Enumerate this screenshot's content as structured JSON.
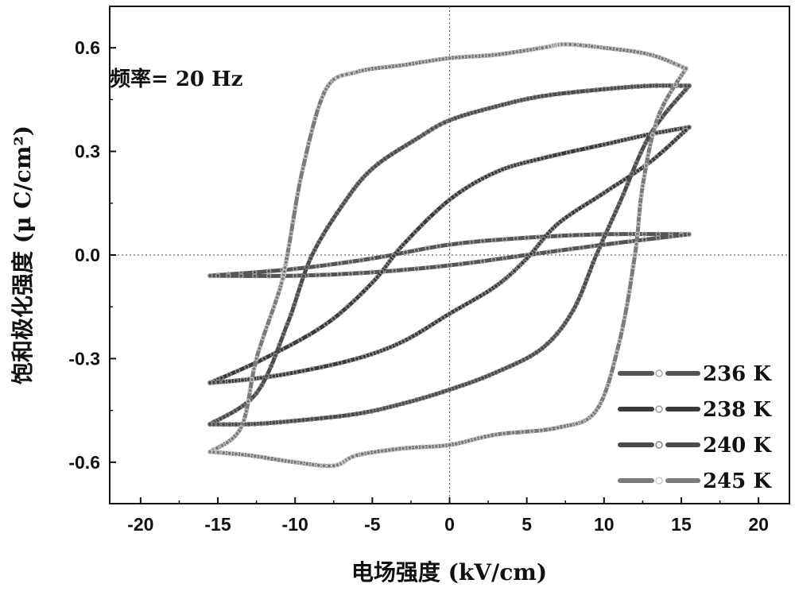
{
  "chart_data": {
    "type": "line",
    "xlabel": "电场强度 (kV/cm)",
    "ylabel": "饱和极化强度 (μ C/cm²)",
    "annotation": "频率= 20 Hz",
    "xlim": [
      -22,
      22
    ],
    "ylim": [
      -0.72,
      0.72
    ],
    "xticks": [
      -20,
      -15,
      -10,
      -5,
      0,
      5,
      10,
      15,
      20
    ],
    "xtick_labels": [
      "-20",
      "-15",
      "-10",
      "-5",
      "0",
      "5",
      "10",
      "15",
      "20"
    ],
    "yticks": [
      -0.6,
      -0.3,
      0.0,
      0.3,
      0.6
    ],
    "ytick_labels": [
      "-0.6",
      "-0.3",
      "0.0",
      "0.3",
      "0.6"
    ],
    "zero_lines": true,
    "legend_position": "bottom-right",
    "series": [
      {
        "name": "236 K",
        "color": "#555555",
        "marker_color": "#aaaaaa",
        "upper": [
          [
            -15.5,
            -0.06
          ],
          [
            -10,
            -0.04
          ],
          [
            -5,
            -0.01
          ],
          [
            0,
            0.03
          ],
          [
            5,
            0.05
          ],
          [
            10,
            0.06
          ],
          [
            15.5,
            0.06
          ]
        ],
        "lower": [
          [
            15.5,
            0.06
          ],
          [
            10,
            0.03
          ],
          [
            5,
            0.0
          ],
          [
            0,
            -0.03
          ],
          [
            -5,
            -0.05
          ],
          [
            -10,
            -0.06
          ],
          [
            -15.5,
            -0.06
          ]
        ]
      },
      {
        "name": "238 K",
        "color": "#3a3a3a",
        "marker_color": "#999999",
        "upper": [
          [
            -15.5,
            -0.37
          ],
          [
            -12,
            -0.3
          ],
          [
            -8,
            -0.2
          ],
          [
            -5,
            -0.08
          ],
          [
            -3,
            0.03
          ],
          [
            0,
            0.16
          ],
          [
            3,
            0.24
          ],
          [
            6,
            0.28
          ],
          [
            10,
            0.32
          ],
          [
            13,
            0.35
          ],
          [
            15.5,
            0.37
          ]
        ],
        "lower": [
          [
            15.5,
            0.37
          ],
          [
            13,
            0.27
          ],
          [
            10,
            0.18
          ],
          [
            7,
            0.09
          ],
          [
            5,
            -0.01
          ],
          [
            3,
            -0.09
          ],
          [
            0,
            -0.17
          ],
          [
            -3,
            -0.25
          ],
          [
            -6,
            -0.3
          ],
          [
            -10,
            -0.34
          ],
          [
            -13,
            -0.36
          ],
          [
            -15.5,
            -0.37
          ]
        ]
      },
      {
        "name": "240 K",
        "color": "#4a4a4a",
        "marker_color": "#888888",
        "upper": [
          [
            -15.5,
            -0.49
          ],
          [
            -12.5,
            -0.4
          ],
          [
            -10.5,
            -0.2
          ],
          [
            -9,
            -0.01
          ],
          [
            -7,
            0.14
          ],
          [
            -5,
            0.25
          ],
          [
            -2,
            0.34
          ],
          [
            0,
            0.39
          ],
          [
            3,
            0.43
          ],
          [
            6,
            0.46
          ],
          [
            10,
            0.48
          ],
          [
            13,
            0.49
          ],
          [
            15.5,
            0.49
          ]
        ],
        "lower": [
          [
            15.5,
            0.49
          ],
          [
            13,
            0.35
          ],
          [
            11,
            0.15
          ],
          [
            9.5,
            0.0
          ],
          [
            8,
            -0.16
          ],
          [
            6,
            -0.27
          ],
          [
            3,
            -0.34
          ],
          [
            0,
            -0.39
          ],
          [
            -3,
            -0.43
          ],
          [
            -6,
            -0.46
          ],
          [
            -10,
            -0.48
          ],
          [
            -13,
            -0.49
          ],
          [
            -15.5,
            -0.49
          ]
        ]
      },
      {
        "name": "245 K",
        "color": "#7a7a7a",
        "marker_color": "#cccccc",
        "upper": [
          [
            -15.5,
            -0.57
          ],
          [
            -13.5,
            -0.5
          ],
          [
            -12.5,
            -0.3
          ],
          [
            -11,
            -0.1
          ],
          [
            -10.5,
            0.0
          ],
          [
            -9.5,
            0.25
          ],
          [
            -8,
            0.48
          ],
          [
            -6,
            0.53
          ],
          [
            -3,
            0.55
          ],
          [
            0,
            0.57
          ],
          [
            3,
            0.58
          ],
          [
            6,
            0.6
          ],
          [
            7.5,
            0.61
          ],
          [
            10,
            0.6
          ],
          [
            13,
            0.58
          ],
          [
            15.3,
            0.54
          ]
        ],
        "lower": [
          [
            15.3,
            0.54
          ],
          [
            13.5,
            0.4
          ],
          [
            12.5,
            0.2
          ],
          [
            12,
            0.0
          ],
          [
            11,
            -0.25
          ],
          [
            9.5,
            -0.45
          ],
          [
            7,
            -0.5
          ],
          [
            3,
            -0.52
          ],
          [
            0,
            -0.55
          ],
          [
            -3,
            -0.56
          ],
          [
            -6,
            -0.58
          ],
          [
            -7.5,
            -0.61
          ],
          [
            -10,
            -0.6
          ],
          [
            -13,
            -0.58
          ],
          [
            -15.5,
            -0.57
          ]
        ]
      }
    ]
  }
}
